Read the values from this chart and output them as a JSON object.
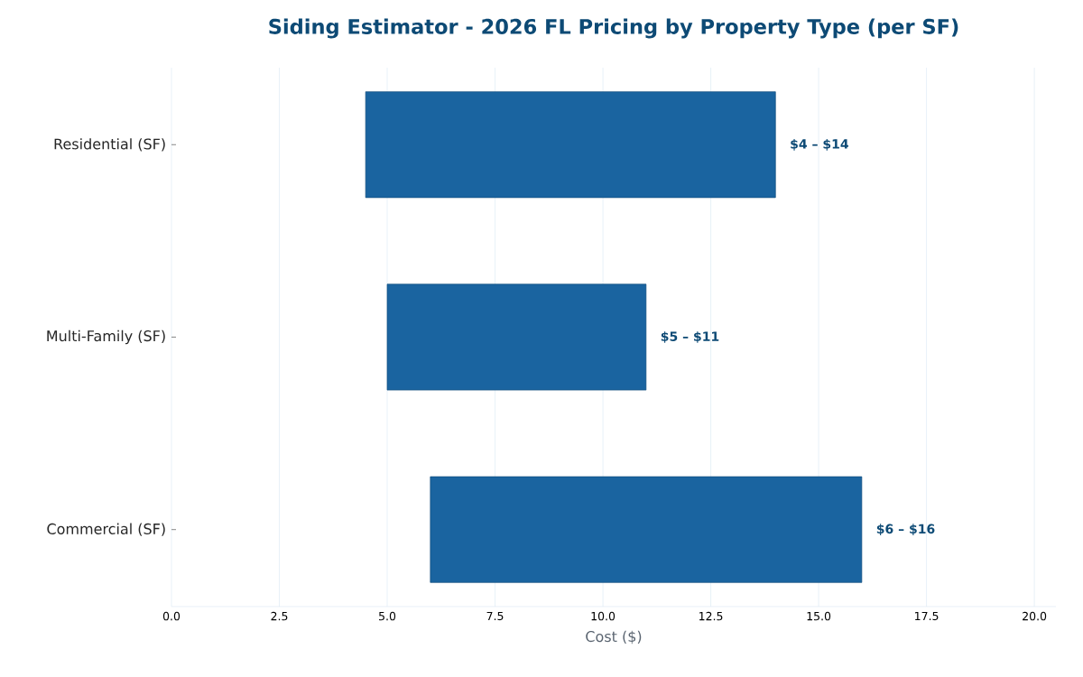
{
  "chart_data": {
    "type": "bar",
    "orientation": "horizontal",
    "title": "Siding Estimator - 2026 FL Pricing by Property Type (per SF)",
    "xlabel": "Cost ($)",
    "categories": [
      "Residential (SF)",
      "Multi-Family (SF)",
      "Commercial (SF)"
    ],
    "base": [
      4.5,
      5,
      6
    ],
    "values": [
      9.5,
      6,
      10
    ],
    "annotations": [
      {
        "text": "$4 – $14",
        "x": 14,
        "y": "Residential (SF)"
      },
      {
        "text": "$5 – $11",
        "x": 11,
        "y": "Multi-Family (SF)"
      },
      {
        "text": "$6 – $16",
        "x": 16,
        "y": "Commercial (SF)"
      }
    ],
    "color": "#1a64a0",
    "xlim": [
      0,
      20.5
    ],
    "xticks": [
      {
        "value": 0,
        "label": "0.0"
      },
      {
        "value": 2.5,
        "label": "2.5"
      },
      {
        "value": 5,
        "label": "5.0"
      },
      {
        "value": 7.5,
        "label": "7.5"
      },
      {
        "value": 10,
        "label": "10.0"
      },
      {
        "value": 12.5,
        "label": "12.5"
      },
      {
        "value": 15,
        "label": "15.0"
      },
      {
        "value": 17.5,
        "label": "17.5"
      },
      {
        "value": 20,
        "label": "20.0"
      }
    ],
    "grid": "x"
  }
}
